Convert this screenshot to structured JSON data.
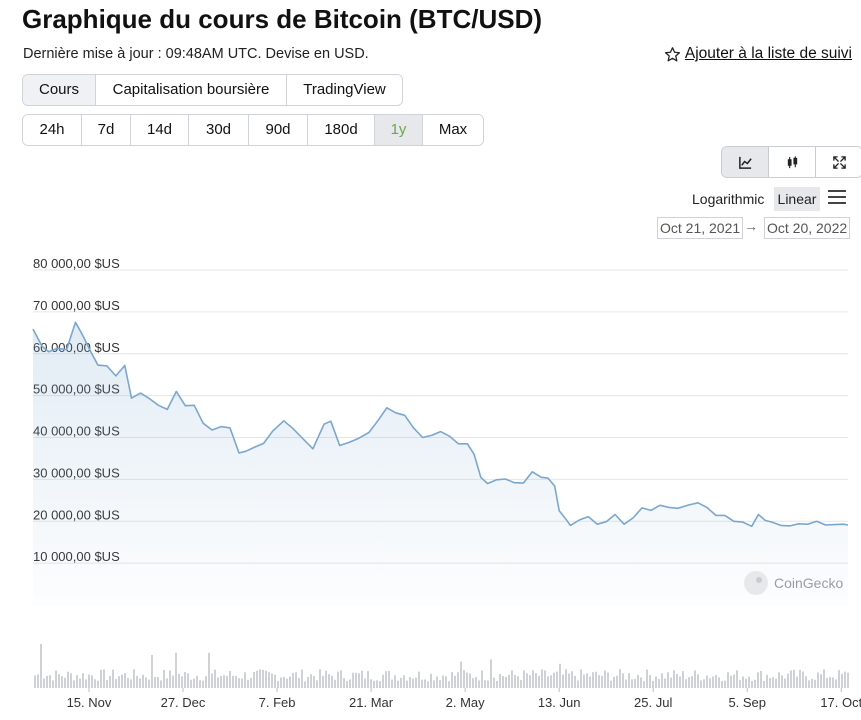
{
  "header": {
    "title": "Graphique du cours de Bitcoin (BTC/USD)",
    "updated": "Dernière mise à jour : 09:48AM UTC. Devise en USD.",
    "watchlist_label": "Ajouter à la liste de suivi",
    "watchlist_icon": "star-outline-icon"
  },
  "tabs": [
    {
      "label": "Cours",
      "active": true
    },
    {
      "label": "Capitalisation boursière",
      "active": false
    },
    {
      "label": "TradingView",
      "active": false
    }
  ],
  "ranges": [
    {
      "label": "24h",
      "active": false
    },
    {
      "label": "7d",
      "active": false
    },
    {
      "label": "14d",
      "active": false
    },
    {
      "label": "30d",
      "active": false
    },
    {
      "label": "90d",
      "active": false
    },
    {
      "label": "180d",
      "active": false
    },
    {
      "label": "1y",
      "active": true
    },
    {
      "label": "Max",
      "active": false
    }
  ],
  "tools": [
    {
      "icon": "line-chart-icon",
      "active": true
    },
    {
      "icon": "candlestick-icon",
      "active": false
    },
    {
      "icon": "expand-icon",
      "active": false
    }
  ],
  "scale": {
    "log_label": "Logarithmic",
    "linear_label": "Linear",
    "active": "linear",
    "menu_icon": "hamburger-menu-icon"
  },
  "date_range": {
    "from": "Oct 21, 2021",
    "arrow": "→",
    "to": "Oct 20, 2022"
  },
  "colors": {
    "line": "#7aa7cf",
    "volume": "#cfd1d6",
    "active_range": "#6aa84f",
    "grid": "#e6e6e6"
  },
  "chart_data": {
    "type": "line",
    "grid": true,
    "ylim": [
      0,
      80000
    ],
    "y_ticks": [
      {
        "value": 80000,
        "label": "80 000,00 $US"
      },
      {
        "value": 70000,
        "label": "70 000,00 $US"
      },
      {
        "value": 60000,
        "label": "60 000,00 $US"
      },
      {
        "value": 50000,
        "label": "50 000,00 $US"
      },
      {
        "value": 40000,
        "label": "40 000,00 $US"
      },
      {
        "value": 30000,
        "label": "30 000,00 $US"
      },
      {
        "value": 20000,
        "label": "20 000,00 $US"
      },
      {
        "value": 10000,
        "label": "10 000,00 $US"
      }
    ],
    "x_range": [
      "2021-10-21",
      "2022-10-20"
    ],
    "x_ticks": [
      {
        "date": "2021-11-15",
        "label": "15. Nov"
      },
      {
        "date": "2021-12-27",
        "label": "27. Dec"
      },
      {
        "date": "2022-02-07",
        "label": "7. Feb"
      },
      {
        "date": "2022-03-21",
        "label": "21. Mar"
      },
      {
        "date": "2022-05-02",
        "label": "2. May"
      },
      {
        "date": "2022-06-13",
        "label": "13. Jun"
      },
      {
        "date": "2022-07-25",
        "label": "25. Jul"
      },
      {
        "date": "2022-09-05",
        "label": "5. Sep"
      },
      {
        "date": "2022-10-17",
        "label": "17. Oct"
      }
    ],
    "series": [
      {
        "x": [
          "2021-10-21",
          "2021-10-25",
          "2021-10-28",
          "2021-11-01",
          "2021-11-05",
          "2021-11-09",
          "2021-11-12",
          "2021-11-16",
          "2021-11-19",
          "2021-11-23",
          "2021-11-27",
          "2021-12-01",
          "2021-12-04",
          "2021-12-08",
          "2021-12-12",
          "2021-12-16",
          "2021-12-20",
          "2021-12-24",
          "2021-12-28",
          "2022-01-01",
          "2022-01-05",
          "2022-01-09",
          "2022-01-13",
          "2022-01-17",
          "2022-01-21",
          "2022-01-24",
          "2022-01-28",
          "2022-02-01",
          "2022-02-05",
          "2022-02-10",
          "2022-02-14",
          "2022-02-18",
          "2022-02-23",
          "2022-02-28",
          "2022-03-03",
          "2022-03-07",
          "2022-03-11",
          "2022-03-15",
          "2022-03-20",
          "2022-03-24",
          "2022-03-28",
          "2022-04-01",
          "2022-04-05",
          "2022-04-09",
          "2022-04-13",
          "2022-04-17",
          "2022-04-21",
          "2022-04-25",
          "2022-04-29",
          "2022-05-03",
          "2022-05-06",
          "2022-05-09",
          "2022-05-12",
          "2022-05-16",
          "2022-05-20",
          "2022-05-24",
          "2022-05-28",
          "2022-06-01",
          "2022-06-05",
          "2022-06-08",
          "2022-06-11",
          "2022-06-13",
          "2022-06-16",
          "2022-06-18",
          "2022-06-22",
          "2022-06-26",
          "2022-06-30",
          "2022-07-04",
          "2022-07-08",
          "2022-07-12",
          "2022-07-16",
          "2022-07-20",
          "2022-07-24",
          "2022-07-28",
          "2022-08-01",
          "2022-08-05",
          "2022-08-10",
          "2022-08-14",
          "2022-08-18",
          "2022-08-22",
          "2022-08-26",
          "2022-08-30",
          "2022-09-03",
          "2022-09-07",
          "2022-09-10",
          "2022-09-13",
          "2022-09-16",
          "2022-09-20",
          "2022-09-24",
          "2022-09-28",
          "2022-10-02",
          "2022-10-06",
          "2022-10-10",
          "2022-10-14",
          "2022-10-18",
          "2022-10-20"
        ],
        "y": [
          65900,
          61800,
          60500,
          61300,
          61000,
          67500,
          64600,
          60300,
          57300,
          57100,
          54700,
          57200,
          49400,
          50600,
          49300,
          47700,
          46700,
          51000,
          47600,
          47700,
          43400,
          41800,
          42600,
          42300,
          36300,
          36700,
          37700,
          38600,
          41500,
          44000,
          42200,
          40000,
          37300,
          43200,
          43900,
          38100,
          38800,
          39700,
          41200,
          44000,
          47100,
          45900,
          45300,
          42300,
          40000,
          40500,
          41400,
          40300,
          38500,
          38500,
          36000,
          30500,
          29000,
          29900,
          30100,
          29200,
          29100,
          31800,
          30500,
          30300,
          28400,
          22500,
          20500,
          19000,
          20300,
          21100,
          19300,
          19900,
          21600,
          19300,
          20800,
          23200,
          22600,
          23800,
          23300,
          23100,
          23900,
          24400,
          23300,
          21400,
          21400,
          20000,
          19800,
          18800,
          21600,
          20200,
          19800,
          19000,
          18900,
          19400,
          19300,
          20000,
          19100,
          19200,
          19300,
          19100
        ]
      }
    ],
    "volume_shown": true,
    "watermark": "CoinGecko"
  }
}
